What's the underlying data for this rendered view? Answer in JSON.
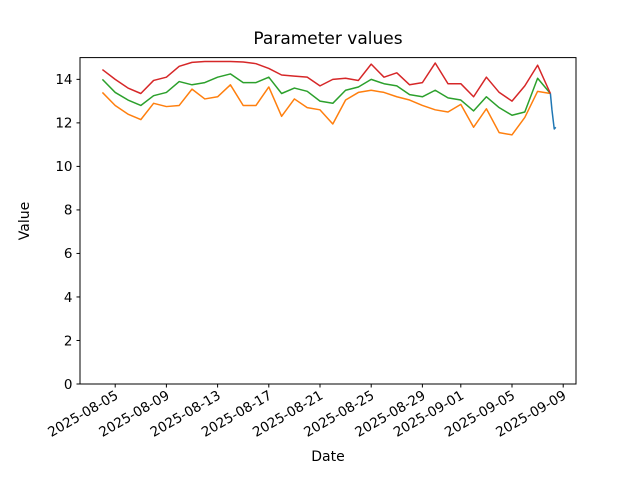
{
  "chart_data": {
    "type": "line",
    "title": "Parameter values",
    "xlabel": "Date",
    "ylabel": "Value",
    "grid": false,
    "legend": "none",
    "background_color": "#ffffff",
    "ylim": [
      0,
      15
    ],
    "y_ticks": [
      0,
      2,
      4,
      6,
      8,
      10,
      12,
      14
    ],
    "start_date": "2025-08-04",
    "xlim_day_offsets": [
      -1.75,
      37.0
    ],
    "x_tick_labels": [
      "2025-08-05",
      "2025-08-09",
      "2025-08-13",
      "2025-08-17",
      "2025-08-21",
      "2025-08-25",
      "2025-08-29",
      "2025-09-01",
      "2025-09-05",
      "2025-09-09"
    ],
    "x_tick_rotation_deg": 30,
    "dates": [
      "2025-08-04",
      "2025-08-05",
      "2025-08-06",
      "2025-08-07",
      "2025-08-08",
      "2025-08-09",
      "2025-08-10",
      "2025-08-11",
      "2025-08-12",
      "2025-08-13",
      "2025-08-14",
      "2025-08-15",
      "2025-08-16",
      "2025-08-17",
      "2025-08-18",
      "2025-08-19",
      "2025-08-20",
      "2025-08-21",
      "2025-08-22",
      "2025-08-23",
      "2025-08-24",
      "2025-08-25",
      "2025-08-26",
      "2025-08-27",
      "2025-08-28",
      "2025-08-29",
      "2025-08-30",
      "2025-08-31",
      "2025-09-01",
      "2025-09-02",
      "2025-09-03",
      "2025-09-04",
      "2025-09-05",
      "2025-09-06",
      "2025-09-07",
      "2025-09-08"
    ],
    "series": [
      {
        "name": "orange",
        "color": "#ff7f0e",
        "values": [
          13.4,
          12.8,
          12.4,
          12.15,
          12.9,
          12.75,
          12.8,
          13.55,
          13.1,
          13.2,
          13.75,
          12.8,
          12.8,
          13.65,
          12.3,
          13.1,
          12.7,
          12.6,
          11.95,
          13.05,
          13.4,
          13.5,
          13.4,
          13.2,
          13.05,
          12.8,
          12.6,
          12.5,
          12.85,
          11.8,
          12.65,
          11.55,
          11.45,
          12.25,
          13.45,
          13.35
        ]
      },
      {
        "name": "green",
        "color": "#2ca02c",
        "values": [
          14.0,
          13.4,
          13.05,
          12.8,
          13.25,
          13.4,
          13.9,
          13.75,
          13.85,
          14.1,
          14.25,
          13.85,
          13.85,
          14.1,
          13.35,
          13.6,
          13.45,
          13.0,
          12.9,
          13.5,
          13.65,
          14.0,
          13.8,
          13.7,
          13.3,
          13.2,
          13.5,
          13.15,
          13.05,
          12.55,
          13.2,
          12.7,
          12.35,
          12.5,
          14.05,
          13.35
        ]
      },
      {
        "name": "red",
        "color": "#d62728",
        "values": [
          14.45,
          14.0,
          13.6,
          13.35,
          13.95,
          14.1,
          14.6,
          14.78,
          14.82,
          14.82,
          14.82,
          14.8,
          14.72,
          14.5,
          14.2,
          14.15,
          14.1,
          13.7,
          14.0,
          14.05,
          13.95,
          14.7,
          14.1,
          14.3,
          13.75,
          13.85,
          14.75,
          13.8,
          13.8,
          13.2,
          14.1,
          13.4,
          13.0,
          13.7,
          14.65,
          13.35
        ]
      },
      {
        "name": "blue-tail",
        "color": "#1f77b4",
        "day_offsets": [
          35.0,
          35.12,
          35.3,
          35.42
        ],
        "values": [
          13.35,
          12.6,
          11.72,
          11.8
        ]
      }
    ]
  }
}
